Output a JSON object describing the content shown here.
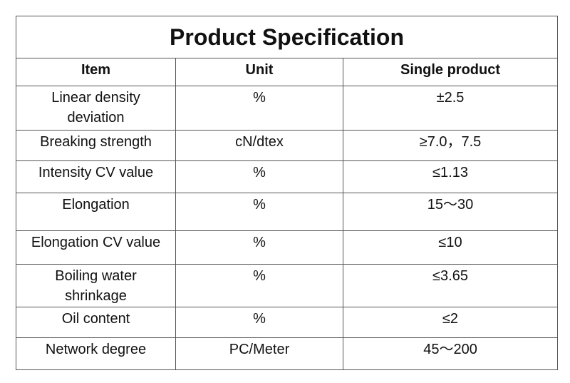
{
  "title": "Product Specification",
  "table": {
    "headers": [
      "Item",
      "Unit",
      "Single product"
    ],
    "rows": [
      [
        "Linear density deviation",
        "%",
        "±2.5"
      ],
      [
        "Breaking strength",
        "cN/dtex",
        "≥7.0，7.5"
      ],
      [
        "Intensity CV value",
        "%",
        "≤1.13"
      ],
      [
        "Elongation",
        "%",
        "15～30"
      ],
      [
        "Elongation CV value",
        "%",
        "≤10"
      ],
      [
        "Boiling water shrinkage",
        "%",
        "≤3.65"
      ],
      [
        "Oil content",
        "%",
        "≤2"
      ],
      [
        "Network degree",
        "PC/Meter",
        "45～200"
      ]
    ]
  }
}
